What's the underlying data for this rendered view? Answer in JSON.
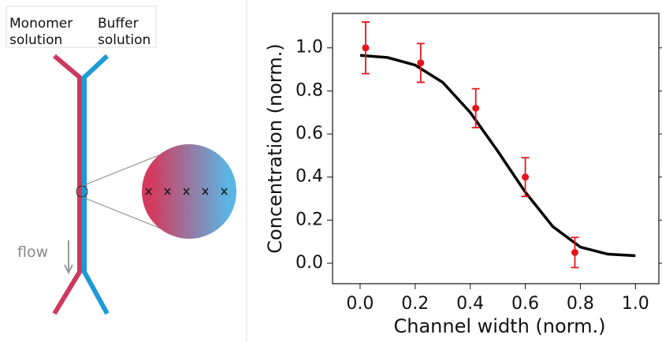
{
  "diagram": {
    "monomer_label": "Monomer solution",
    "buffer_label": "Buffer solution",
    "flow_label": "flow"
  },
  "chart_data": {
    "type": "scatter",
    "x_label": "Channel width (norm.)",
    "y_label": "Concentration (norm.)",
    "xlim": [
      -0.1,
      1.085
    ],
    "ylim": [
      -0.095,
      1.16
    ],
    "xticks": [
      {
        "value": 0,
        "label": "0.0"
      },
      0.2,
      0.4,
      0.6,
      0.8,
      {
        "value": 1,
        "label": "1.0"
      }
    ],
    "yticks": [
      {
        "value": 0,
        "label": "0.0"
      },
      0.2,
      0.4,
      0.6,
      0.8,
      {
        "value": 1,
        "label": "1.0"
      }
    ],
    "series": [
      {
        "type": "scatter",
        "color": "#e8141b",
        "x": [
          0.02,
          0.22,
          0.42,
          0.6,
          0.78
        ],
        "values": [
          1.0,
          0.93,
          0.72,
          0.4,
          0.05
        ],
        "errors": [
          0.12,
          0.09,
          0.09,
          0.09,
          0.07
        ]
      },
      {
        "type": "line",
        "color": "#000000",
        "x": [
          0,
          0.1,
          0.2,
          0.3,
          0.4,
          0.5,
          0.6,
          0.7,
          0.8,
          0.9,
          1.0
        ],
        "values": [
          0.965,
          0.955,
          0.92,
          0.84,
          0.7,
          0.52,
          0.33,
          0.17,
          0.075,
          0.042,
          0.035
        ]
      }
    ]
  }
}
